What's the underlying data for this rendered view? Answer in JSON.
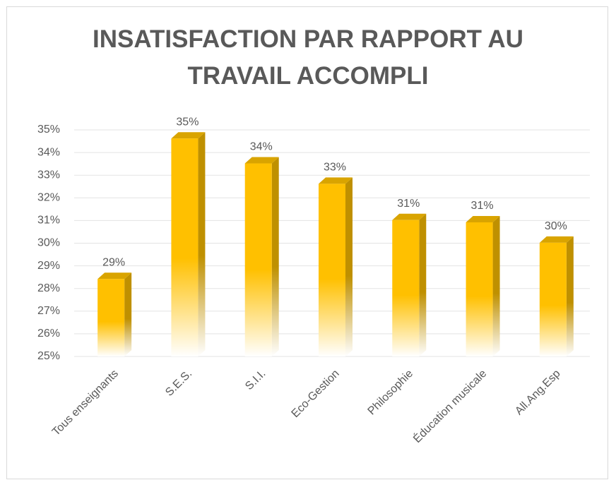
{
  "chart_data": {
    "type": "bar3d",
    "title": "INSATISFACTION PAR RAPPORT AU TRAVAIL ACCOMPLI",
    "categories": [
      "Tous enseignants",
      "S.E.S.",
      "S.I.I.",
      "Eco-Gestion",
      "Philosophie",
      "Éducation musicale",
      "All.Ang.Esp"
    ],
    "values": [
      28.7,
      34.9,
      33.8,
      32.9,
      31.3,
      31.2,
      30.3
    ],
    "value_labels": [
      "29%",
      "35%",
      "34%",
      "33%",
      "31%",
      "31%",
      "30%"
    ],
    "color": "#ffc000",
    "ylim": [
      25,
      35
    ],
    "yticks": [
      {
        "value": 25,
        "label": "25%"
      },
      {
        "value": 26,
        "label": "26%"
      },
      {
        "value": 27,
        "label": "27%"
      },
      {
        "value": 28,
        "label": "28%"
      },
      {
        "value": 29,
        "label": "29%"
      },
      {
        "value": 30,
        "label": "30%"
      },
      {
        "value": 31,
        "label": "31%"
      },
      {
        "value": 32,
        "label": "32%"
      },
      {
        "value": 33,
        "label": "33%"
      },
      {
        "value": 34,
        "label": "34%"
      },
      {
        "value": 35,
        "label": "35%"
      }
    ],
    "grid": true
  }
}
